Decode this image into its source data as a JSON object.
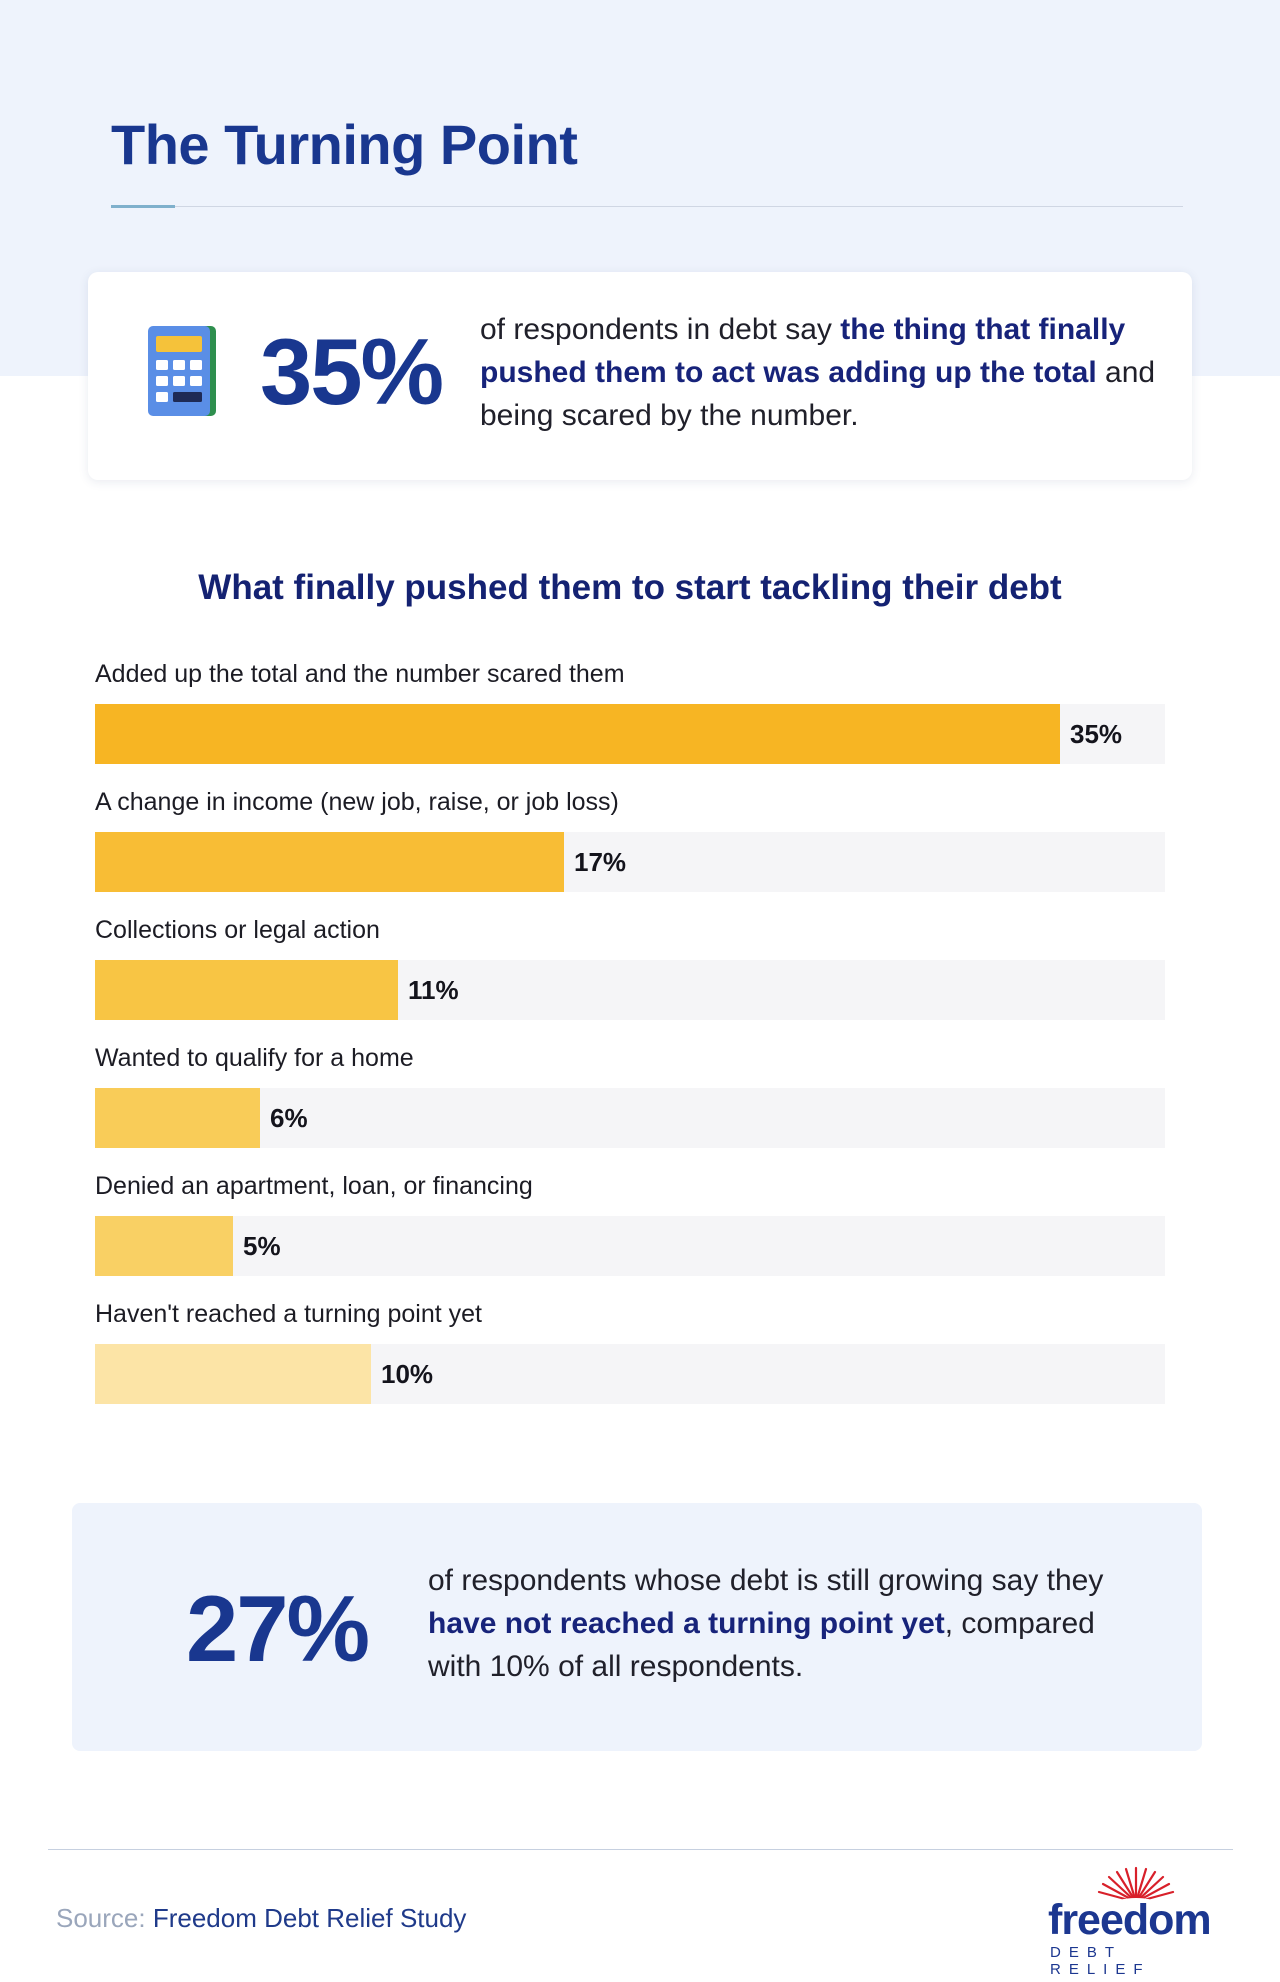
{
  "header": {
    "title": "The Turning Point"
  },
  "stat_top": {
    "icon": "calculator-icon",
    "value": "35%",
    "text_pre": "of respondents in debt say ",
    "text_highlight": "the thing that finally pushed them to act was adding up the total",
    "text_post": " and being scared by the number."
  },
  "chart_data": {
    "type": "bar",
    "orientation": "horizontal",
    "title": "What finally pushed them to start tackling their debt",
    "categories": [
      "Added up the total and the number scared them",
      "A change in income (new job, raise, or job loss)",
      "Collections or legal action",
      "Wanted to qualify for a home",
      "Denied an apartment, loan, or financing",
      "Haven't reached a turning point yet"
    ],
    "values": [
      35,
      17,
      11,
      6,
      5,
      10
    ],
    "value_labels": [
      "35%",
      "17%",
      "11%",
      "6%",
      "5%",
      "10%"
    ],
    "colors": [
      "#f7b523",
      "#f8bd35",
      "#f8c544",
      "#f9cc58",
      "#f9d064",
      "#fce4a6"
    ],
    "xlim": [
      0,
      38.8
    ],
    "grid": false,
    "legend": "none"
  },
  "stat_bottom": {
    "value": "27%",
    "text_pre": "of respondents whose debt is still growing say they ",
    "text_highlight": "have not reached a turning point yet",
    "text_post": ", compared with 10% of all respondents."
  },
  "footer": {
    "source_label": "Source:",
    "source_name": "Freedom Debt Relief Study",
    "logo_word": "freedom",
    "logo_sub": "DEBT RELIEF"
  },
  "colors": {
    "brand_navy": "#19378f",
    "highlight_text": "#17237a",
    "band_background": "#eef3fc"
  }
}
